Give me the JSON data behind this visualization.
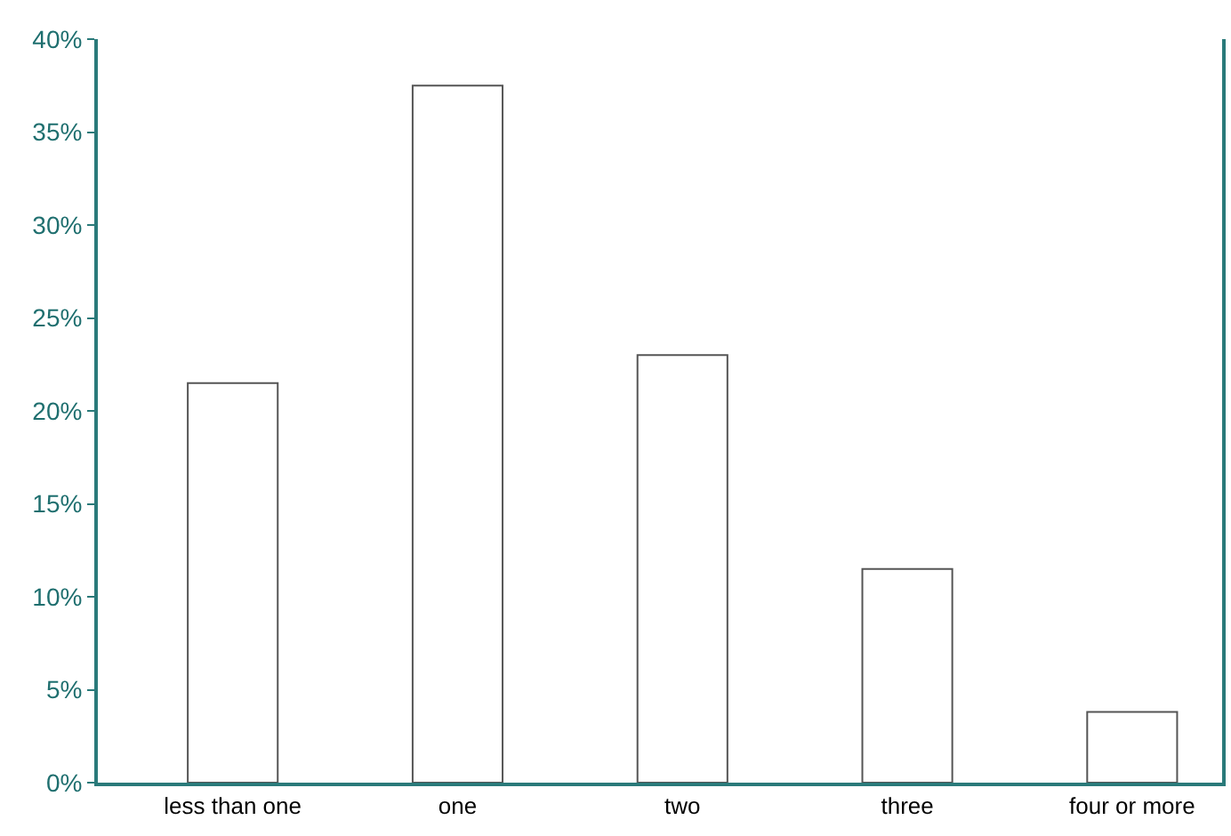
{
  "chart_data": {
    "type": "bar",
    "categories": [
      "less than one",
      "one",
      "two",
      "three",
      "four or more"
    ],
    "values": [
      21.5,
      37.5,
      23,
      11.5,
      3.8
    ],
    "color": "#ffffff",
    "ylim": [
      0,
      40
    ],
    "yticks": [
      {
        "value": 0,
        "label": "0%"
      },
      {
        "value": 5,
        "label": "5%"
      },
      {
        "value": 10,
        "label": "10%"
      },
      {
        "value": 15,
        "label": "15%"
      },
      {
        "value": 20,
        "label": "20%"
      },
      {
        "value": 25,
        "label": "25%"
      },
      {
        "value": 30,
        "label": "30%"
      },
      {
        "value": 35,
        "label": "35%"
      },
      {
        "value": 40,
        "label": "40%"
      }
    ],
    "grid": false,
    "legend": false
  }
}
